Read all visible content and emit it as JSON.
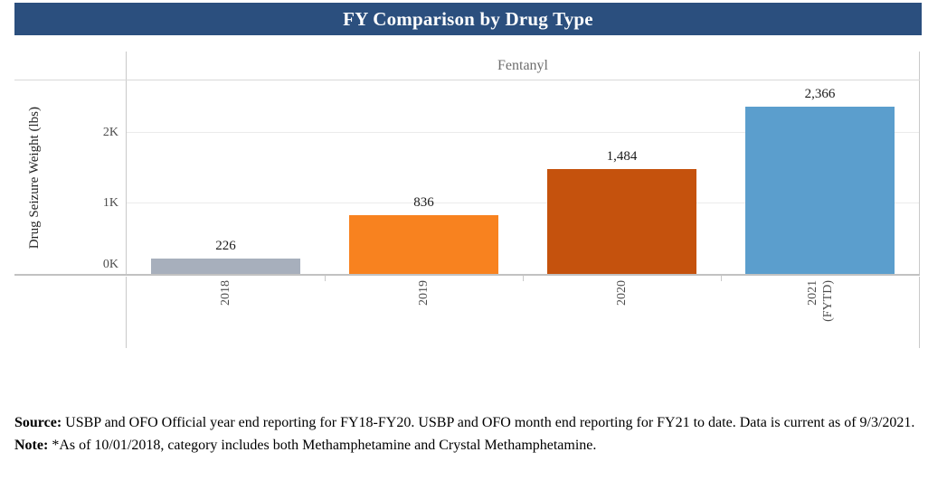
{
  "header": {
    "title": "FY Comparison by Drug Type",
    "bg_color": "#2B4F7E",
    "text_color": "#FFFFFF"
  },
  "chart_data": {
    "type": "bar",
    "title": "FY Comparison by Drug Type",
    "panel_title": "Fentanyl",
    "ylabel": "Drug Seizure Weight (lbs)",
    "xlabel": "",
    "categories": [
      "2018",
      "2019",
      "2020",
      "2021 (FYTD)"
    ],
    "category_lines": [
      [
        "2018"
      ],
      [
        "2019"
      ],
      [
        "2020"
      ],
      [
        "2021",
        "(FYTD)"
      ]
    ],
    "values": [
      226,
      836,
      1484,
      2366
    ],
    "value_labels": [
      "226",
      "836",
      "1,484",
      "2,366"
    ],
    "bar_colors": [
      "#A7AFBC",
      "#F8821F",
      "#C5520D",
      "#5B9ECD"
    ],
    "y_ticks": [
      {
        "value": 0,
        "label": "0K"
      },
      {
        "value": 1000,
        "label": "1K"
      },
      {
        "value": 2000,
        "label": "2K"
      }
    ],
    "ylim": [
      0,
      2730
    ],
    "grid": true,
    "legend_position": "none"
  },
  "footer": {
    "source_label": "Source:",
    "source_text": " USBP and OFO Official year end reporting for FY18-FY20. USBP and OFO month end reporting for FY21 to date. Data is current as of 9/3/2021.",
    "note_label": "Note:",
    "note_text": " *As of 10/01/2018, category includes both Methamphetamine and Crystal Methamphetamine."
  }
}
